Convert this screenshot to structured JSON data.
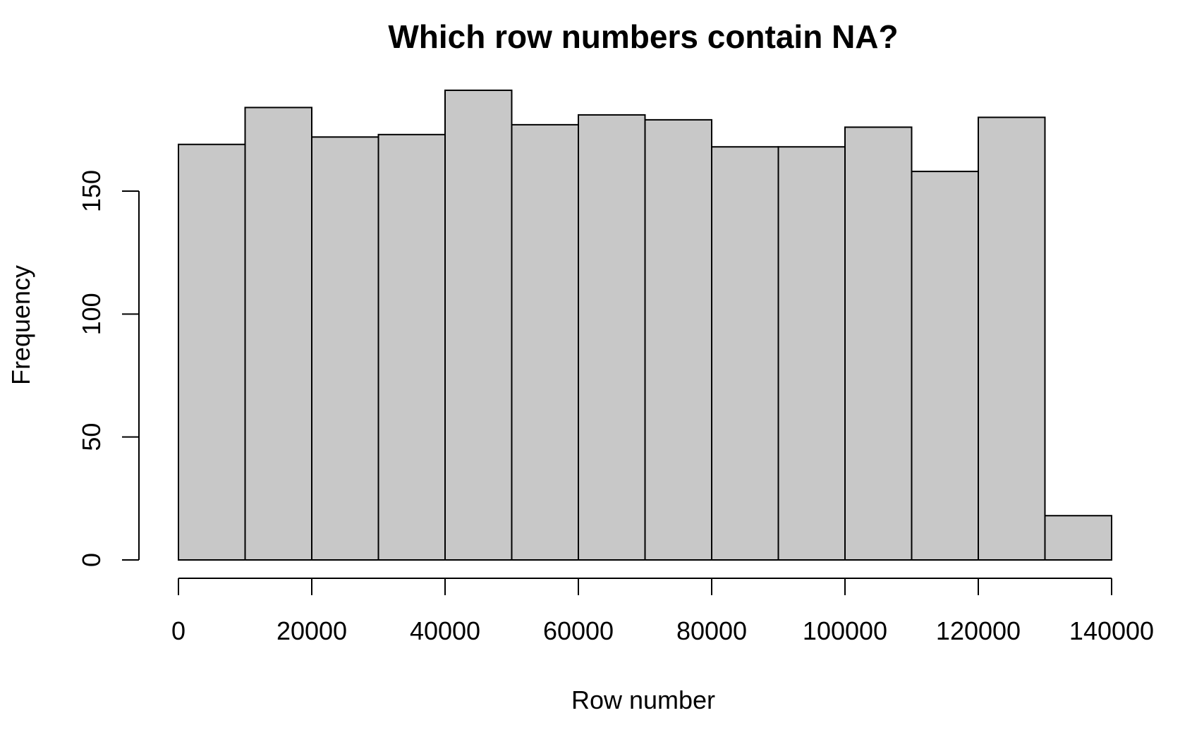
{
  "chart_data": {
    "type": "bar",
    "title": "Which row numbers contain NA?",
    "xlabel": "Row number",
    "ylabel": "Frequency",
    "bin_edges": [
      0,
      10000,
      20000,
      30000,
      40000,
      50000,
      60000,
      70000,
      80000,
      90000,
      100000,
      110000,
      120000,
      130000,
      140000
    ],
    "values": [
      169,
      184,
      172,
      173,
      191,
      177,
      181,
      179,
      168,
      168,
      176,
      158,
      180,
      18
    ],
    "xlim": [
      0,
      140000
    ],
    "ylim": [
      0,
      191
    ],
    "x_ticks": [
      0,
      20000,
      40000,
      60000,
      80000,
      100000,
      120000,
      140000
    ],
    "x_tick_labels": [
      "0",
      "20000",
      "40000",
      "60000",
      "80000",
      "100000",
      "120000",
      "140000"
    ],
    "y_ticks": [
      0,
      50,
      100,
      150
    ],
    "y_tick_labels": [
      "0",
      "50",
      "100",
      "150"
    ],
    "bar_color": "#c8c8c8",
    "grid": false,
    "legend": "none"
  }
}
